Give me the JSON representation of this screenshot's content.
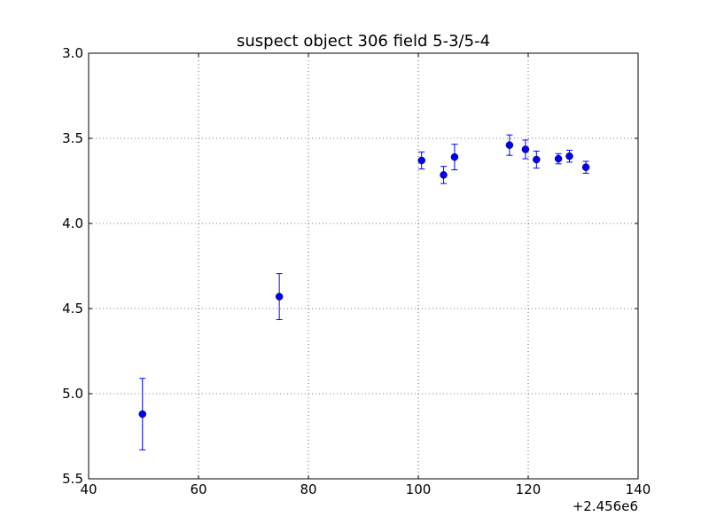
{
  "chart_data": {
    "type": "scatter",
    "title": "suspect object 306 field 5-3/5-4",
    "xlabel": "",
    "ylabel": "",
    "x_offset_label": "+2.456e6",
    "xlim": [
      40,
      140
    ],
    "ylim": [
      3.0,
      5.5
    ],
    "y_inverted": true,
    "x_ticks": [
      40,
      60,
      80,
      100,
      120,
      140
    ],
    "y_ticks": [
      3.0,
      3.5,
      4.0,
      4.5,
      5.0,
      5.5
    ],
    "x_tick_labels": [
      "40",
      "60",
      "80",
      "100",
      "120",
      "140"
    ],
    "y_tick_labels": [
      "3.0",
      "3.5",
      "4.0",
      "4.5",
      "5.0",
      "5.5"
    ],
    "grid": true,
    "marker_color": "#0000ff",
    "points": [
      {
        "x": 49.8,
        "y": 5.12,
        "err": 0.21
      },
      {
        "x": 74.7,
        "y": 4.43,
        "err": 0.135
      },
      {
        "x": 100.6,
        "y": 3.63,
        "err": 0.05
      },
      {
        "x": 104.6,
        "y": 3.715,
        "err": 0.05
      },
      {
        "x": 106.6,
        "y": 3.61,
        "err": 0.075
      },
      {
        "x": 116.6,
        "y": 3.54,
        "err": 0.06
      },
      {
        "x": 119.5,
        "y": 3.565,
        "err": 0.055
      },
      {
        "x": 121.5,
        "y": 3.625,
        "err": 0.05
      },
      {
        "x": 125.5,
        "y": 3.62,
        "err": 0.03
      },
      {
        "x": 127.5,
        "y": 3.605,
        "err": 0.035
      },
      {
        "x": 130.5,
        "y": 3.67,
        "err": 0.035
      }
    ]
  }
}
